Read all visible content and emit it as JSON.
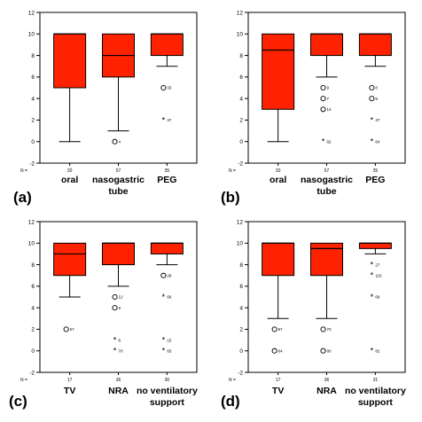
{
  "chart_data": [
    {
      "type": "boxplot",
      "panel_label": "(a)",
      "ylim": [
        -2,
        12
      ],
      "yticks": [
        -2,
        0,
        2,
        4,
        6,
        8,
        10,
        12
      ],
      "n_prefix": "N =",
      "box_color": "#ff2200",
      "categories": [
        {
          "label": "oral",
          "n": "20",
          "whisker_low": 0,
          "q1": 5,
          "median": 10,
          "q3": 10,
          "whisker_high": 10,
          "outliers": []
        },
        {
          "label": "nasogastric tube",
          "n": "57",
          "whisker_low": 1,
          "q1": 6,
          "median": 8,
          "q3": 10,
          "whisker_high": 10,
          "outliers": [
            {
              "value": 0,
              "label": "4",
              "marker": "circle"
            }
          ]
        },
        {
          "label": "PEG",
          "n": "35",
          "whisker_low": 7,
          "q1": 8,
          "median": 10,
          "q3": 10,
          "whisker_high": 10,
          "outliers": [
            {
              "value": 5,
              "label": "33",
              "marker": "circle"
            },
            {
              "value": 2,
              "label": "47",
              "marker": "star"
            }
          ]
        }
      ]
    },
    {
      "type": "boxplot",
      "panel_label": "(b)",
      "ylim": [
        -2,
        12
      ],
      "yticks": [
        -2,
        0,
        2,
        4,
        6,
        8,
        10,
        12
      ],
      "n_prefix": "N =",
      "box_color": "#ff2200",
      "categories": [
        {
          "label": "oral",
          "n": "20",
          "whisker_low": 0,
          "q1": 3,
          "median": 8.5,
          "q3": 10,
          "whisker_high": 10,
          "outliers": []
        },
        {
          "label": "nasogastric tube",
          "n": "57",
          "whisker_low": 6,
          "q1": 8,
          "median": 10,
          "q3": 10,
          "whisker_high": 10,
          "outliers": [
            {
              "value": 5,
              "label": "9",
              "marker": "circle"
            },
            {
              "value": 4,
              "label": "7",
              "marker": "circle"
            },
            {
              "value": 3,
              "label": "14",
              "marker": "circle"
            },
            {
              "value": 0,
              "label": "82",
              "marker": "star"
            }
          ]
        },
        {
          "label": "PEG",
          "n": "35",
          "whisker_low": 7,
          "q1": 8,
          "median": 10,
          "q3": 10,
          "whisker_high": 10,
          "outliers": [
            {
              "value": 5,
              "label": "8",
              "marker": "circle"
            },
            {
              "value": 4,
              "label": "9",
              "marker": "circle"
            },
            {
              "value": 2,
              "label": "47",
              "marker": "star"
            },
            {
              "value": 0,
              "label": "64",
              "marker": "star"
            }
          ]
        }
      ]
    },
    {
      "type": "boxplot",
      "panel_label": "(c)",
      "ylim": [
        -2,
        12
      ],
      "yticks": [
        -2,
        0,
        2,
        4,
        6,
        8,
        10,
        12
      ],
      "n_prefix": "N =",
      "box_color": "#ff2200",
      "categories": [
        {
          "label": "TV",
          "n": "17",
          "whisker_low": 5,
          "q1": 7,
          "median": 9,
          "q3": 10,
          "whisker_high": 10,
          "outliers": [
            {
              "value": 2,
              "label": "67",
              "marker": "circle"
            }
          ]
        },
        {
          "label": "NRA",
          "n": "36",
          "whisker_low": 6,
          "q1": 8,
          "median": 10,
          "q3": 10,
          "whisker_high": 10,
          "outliers": [
            {
              "value": 5,
              "label": "12",
              "marker": "circle"
            },
            {
              "value": 4,
              "label": "9",
              "marker": "circle"
            },
            {
              "value": 1,
              "label": "8",
              "marker": "star"
            },
            {
              "value": 0,
              "label": "70",
              "marker": "star"
            }
          ]
        },
        {
          "label": "no ventilatory support",
          "n": "30",
          "whisker_low": 8,
          "q1": 9,
          "median": 10,
          "q3": 10,
          "whisker_high": 10,
          "outliers": [
            {
              "value": 7,
              "label": "28",
              "marker": "circle"
            },
            {
              "value": 5,
              "label": "68",
              "marker": "star"
            },
            {
              "value": 1,
              "label": "15",
              "marker": "star"
            },
            {
              "value": 0,
              "label": "65",
              "marker": "star"
            }
          ]
        }
      ]
    },
    {
      "type": "boxplot",
      "panel_label": "(d)",
      "ylim": [
        -2,
        12
      ],
      "yticks": [
        -2,
        0,
        2,
        4,
        6,
        8,
        10,
        12
      ],
      "n_prefix": "N =",
      "box_color": "#ff2200",
      "categories": [
        {
          "label": "TV",
          "n": "17",
          "whisker_low": 3,
          "q1": 7,
          "median": 10,
          "q3": 10,
          "whisker_high": 10,
          "outliers": [
            {
              "value": 2,
              "label": "67",
              "marker": "circle"
            },
            {
              "value": 0,
              "label": "64",
              "marker": "circle"
            }
          ]
        },
        {
          "label": "NRA",
          "n": "36",
          "whisker_low": 3,
          "q1": 7,
          "median": 9.5,
          "q3": 10,
          "whisker_high": 10,
          "outliers": [
            {
              "value": 2,
              "label": "70",
              "marker": "circle"
            },
            {
              "value": 0,
              "label": "80",
              "marker": "circle"
            }
          ]
        },
        {
          "label": "no ventilatory support",
          "n": "31",
          "whisker_low": 9,
          "q1": 9.5,
          "median": 10,
          "q3": 10,
          "whisker_high": 10,
          "outliers": [
            {
              "value": 8,
              "label": "27",
              "marker": "star"
            },
            {
              "value": 7,
              "label": "116",
              "marker": "star"
            },
            {
              "value": 5,
              "label": "68",
              "marker": "star"
            },
            {
              "value": 0,
              "label": "82",
              "marker": "star"
            }
          ]
        }
      ]
    }
  ]
}
